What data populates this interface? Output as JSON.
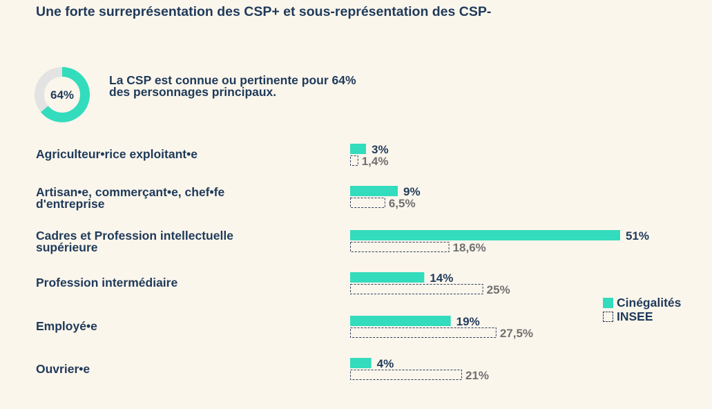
{
  "title": "Une forte surreprésentation des CSP+ et sous-représentation des CSP-",
  "donut": {
    "value": 64,
    "label": "64%",
    "text_line1": "La CSP est connue ou pertinente pour 64%",
    "text_line2": "des personnages principaux."
  },
  "colors": {
    "cinegalites": "#33dcbc",
    "insee_border": "#2a3a5a",
    "donut_bg": "#e3e3e3",
    "navy": "#1f3a5a",
    "grey_text": "#707070"
  },
  "legend": {
    "cinegalites": "Cinégalités",
    "insee": "INSEE"
  },
  "chart_data": {
    "type": "bar",
    "orientation": "horizontal",
    "categories": [
      [
        "Agriculteur•rice exploitant•e"
      ],
      [
        "Artisan•e, commerçant•e, chef•fe",
        "d'entreprise"
      ],
      [
        "Cadres et Profession intellectuelle",
        "supérieure"
      ],
      [
        "Profession intermédiaire"
      ],
      [
        "Employé•e"
      ],
      [
        "Ouvrier•e"
      ]
    ],
    "series": [
      {
        "name": "Cinégalités",
        "values": [
          3,
          9,
          51,
          14,
          19,
          4
        ],
        "labels": [
          "3%",
          "9%",
          "51%",
          "14%",
          "19%",
          "4%"
        ]
      },
      {
        "name": "INSEE",
        "values": [
          1.4,
          6.5,
          18.6,
          25,
          27.5,
          21
        ],
        "labels": [
          "1,4%",
          "6,5%",
          "18,6%",
          "25%",
          "27,5%",
          "21%"
        ]
      }
    ],
    "legend_position": "right"
  }
}
